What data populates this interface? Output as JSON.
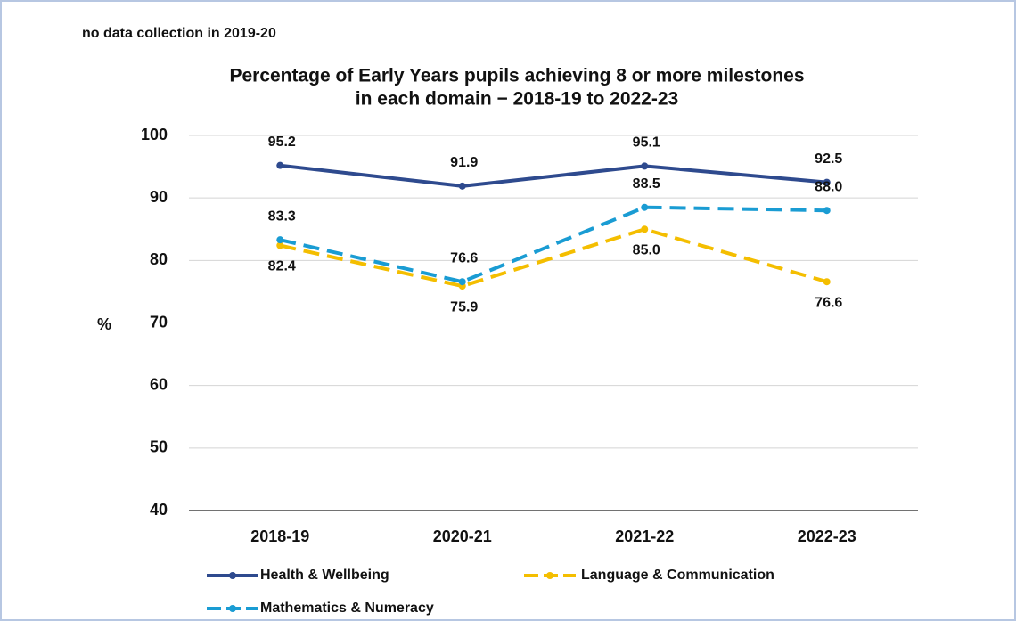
{
  "chart_data": {
    "type": "line",
    "note": "no data collection in 2019-20",
    "title": [
      "Percentage of Early Years pupils achieving 8 or more milestones",
      "in each domain − 2018-19 to 2022-23"
    ],
    "ylabel": "%",
    "categories": [
      "2018-19",
      "2020-21",
      "2021-22",
      "2022-23"
    ],
    "series": [
      {
        "name": "Health & Wellbeing",
        "color": "#2e4a8e",
        "dashed": false,
        "label_position": "above",
        "values": [
          95.2,
          91.9,
          95.1,
          92.5
        ],
        "value_labels": [
          "95.2",
          "91.9",
          "95.1",
          "92.5"
        ]
      },
      {
        "name": "Language & Communication",
        "color": "#f4be00",
        "dashed": true,
        "label_position": "below",
        "values": [
          82.4,
          75.9,
          85.0,
          76.6
        ],
        "value_labels": [
          "82.4",
          "75.9",
          "85.0",
          "76.6"
        ]
      },
      {
        "name": "Mathematics & Numeracy",
        "color": "#1a9cd3",
        "dashed": true,
        "label_position": "above",
        "values": [
          83.3,
          76.6,
          88.5,
          88.0
        ],
        "value_labels": [
          "83.3",
          "76.6",
          "88.5",
          "88.0"
        ]
      }
    ],
    "ylim": [
      40,
      100
    ],
    "yticks": [
      40,
      50,
      60,
      70,
      80,
      90,
      100
    ],
    "grid": true,
    "legend": "bottom"
  }
}
